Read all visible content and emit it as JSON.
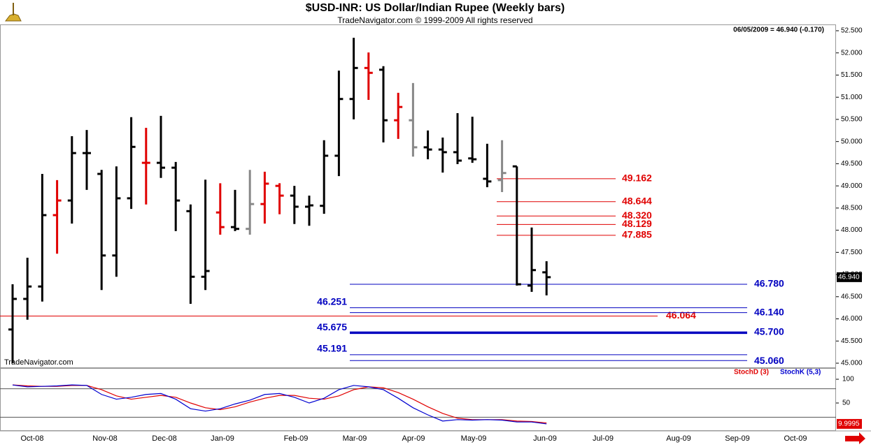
{
  "chart_data": {
    "type": "ohlc",
    "title": "$USD-INR:  US Dollar/Indian Rupee  (Weekly bars)",
    "subtitle": "TradeNavigator.com © 1999-2009 All rights reserved",
    "info": "06/05/2009 = 46.940 (-0.170)",
    "watermark": "TradeNavigator.com",
    "xticks": [
      "Oct-08",
      "Nov-08",
      "Dec-08",
      "Jan-09",
      "Feb-09",
      "Mar-09",
      "Apr-09",
      "May-09",
      "Jun-09",
      "Jul-09",
      "Aug-09",
      "Sep-09",
      "Oct-09"
    ],
    "open": [
      45.76,
      46.45,
      46.73,
      48.34,
      48.67,
      49.74,
      49.27,
      47.43,
      48.72,
      49.52,
      49.52,
      49.41,
      48.43,
      46.95,
      48.4,
      48.07,
      48.03,
      48.59,
      49.0,
      48.78,
      48.53,
      48.55,
      49.68,
      50.96,
      51.66,
      51.62,
      50.48,
      50.48,
      49.87,
      49.82,
      49.76,
      49.62,
      49.16,
      49.13,
      49.44,
      46.75,
      47.05
    ],
    "high": [
      46.78,
      47.38,
      49.27,
      49.13,
      50.12,
      50.26,
      49.36,
      49.44,
      50.55,
      50.31,
      50.58,
      49.54,
      48.58,
      49.14,
      49.06,
      48.91,
      49.36,
      49.32,
      49.06,
      49.0,
      48.78,
      50.03,
      51.6,
      52.34,
      52.01,
      51.7,
      51.1,
      51.32,
      50.25,
      50.09,
      50.64,
      50.56,
      49.95,
      50.03,
      49.44,
      48.06,
      47.3
    ],
    "low": [
      45.0,
      45.98,
      46.39,
      47.47,
      48.15,
      48.91,
      46.65,
      46.95,
      48.48,
      48.58,
      49.18,
      47.98,
      46.34,
      46.65,
      47.9,
      47.98,
      47.9,
      48.15,
      48.36,
      48.14,
      48.1,
      48.37,
      49.22,
      50.5,
      50.94,
      49.98,
      50.06,
      49.66,
      49.6,
      49.3,
      49.49,
      49.52,
      48.97,
      48.86,
      46.75,
      46.61,
      46.53
    ],
    "close": [
      46.45,
      46.73,
      48.34,
      48.67,
      49.74,
      49.74,
      47.43,
      48.72,
      49.88,
      49.52,
      49.41,
      48.67,
      46.95,
      47.08,
      48.07,
      48.03,
      48.59,
      49.05,
      48.78,
      48.53,
      48.56,
      49.68,
      50.96,
      51.66,
      51.55,
      50.48,
      50.78,
      49.87,
      49.82,
      49.76,
      49.57,
      49.6,
      49.1,
      49.29,
      46.78,
      47.1,
      46.94
    ],
    "bar_colors": [
      "#000",
      "#000",
      "#000",
      "#e00000",
      "#000",
      "#000",
      "#000",
      "#000",
      "#000",
      "#e00000",
      "#000",
      "#000",
      "#000",
      "#000",
      "#e00000",
      "#000",
      "#888",
      "#e00000",
      "#e00000",
      "#000",
      "#000",
      "#000",
      "#000",
      "#000",
      "#e00000",
      "#000",
      "#e00000",
      "#888",
      "#000",
      "#000",
      "#000",
      "#000",
      "#000",
      "#888",
      "#000",
      "#000",
      "#000"
    ],
    "ylim": [
      45,
      52.5
    ],
    "yticks": [
      {
        "value": 45,
        "label": "45.000"
      },
      {
        "value": 45.5,
        "label": "45.500"
      },
      {
        "value": 46,
        "label": "46.000"
      },
      {
        "value": 46.5,
        "label": "46.500"
      },
      {
        "value": 47,
        "label": "47.000"
      },
      {
        "value": 47.5,
        "label": "47.500"
      },
      {
        "value": 48,
        "label": "48.000"
      },
      {
        "value": 48.5,
        "label": "48.500"
      },
      {
        "value": 49,
        "label": "49.000"
      },
      {
        "value": 49.5,
        "label": "49.500"
      },
      {
        "value": 50,
        "label": "50.000"
      },
      {
        "value": 50.5,
        "label": "50.500"
      },
      {
        "value": 51,
        "label": "51.000"
      },
      {
        "value": 51.5,
        "label": "51.500"
      },
      {
        "value": 52,
        "label": "52.000"
      },
      {
        "value": 52.5,
        "label": "52.500"
      }
    ],
    "last_price": {
      "value": 46.94,
      "label": "46.940"
    },
    "levels": [
      {
        "value": 49.162,
        "label": "49.162",
        "color": "#e00000"
      },
      {
        "value": 48.644,
        "label": "48.644",
        "color": "#e00000"
      },
      {
        "value": 48.32,
        "label": "48.320",
        "color": "#e00000"
      },
      {
        "value": 48.129,
        "label": "48.129",
        "color": "#e00000"
      },
      {
        "value": 47.885,
        "label": "47.885",
        "color": "#e00000"
      },
      {
        "value": 46.064,
        "label": "46.064",
        "color": "#e00000"
      },
      {
        "value": 46.78,
        "label": "46.780",
        "color": "#0000c0"
      },
      {
        "value": 46.251,
        "label": "46.251",
        "color": "#0000c0"
      },
      {
        "value": 46.14,
        "label": "46.140",
        "color": "#0000c0"
      },
      {
        "value": 45.7,
        "label": "45.700",
        "color": "#0000c0"
      },
      {
        "value": 45.675,
        "label": "45.675",
        "color": "#0000c0"
      },
      {
        "value": 45.191,
        "label": "45.191",
        "color": "#0000c0"
      },
      {
        "value": 45.06,
        "label": "45.060",
        "color": "#0000c0"
      }
    ],
    "stochastic": {
      "y2lim": [
        0,
        100
      ],
      "y2ticks": [
        50,
        100
      ],
      "ref_lines": [
        20,
        80
      ],
      "last_label": "9.9995",
      "series": [
        {
          "name": "StochD (3)",
          "color": "#e00000",
          "values": [
            88,
            86,
            85,
            85,
            87,
            87,
            78,
            65,
            58,
            62,
            66,
            62,
            50,
            40,
            36,
            42,
            52,
            60,
            66,
            66,
            60,
            58,
            65,
            78,
            84,
            82,
            72,
            58,
            42,
            28,
            18,
            15,
            15,
            15,
            12,
            11,
            8
          ]
        },
        {
          "name": "StochK (5,3)",
          "color": "#0000d0",
          "values": [
            88,
            84,
            85,
            86,
            88,
            87,
            68,
            58,
            62,
            68,
            70,
            58,
            38,
            33,
            38,
            48,
            56,
            68,
            70,
            62,
            50,
            60,
            78,
            87,
            84,
            78,
            60,
            40,
            25,
            12,
            15,
            14,
            15,
            14,
            10,
            10,
            6
          ]
        }
      ]
    }
  }
}
